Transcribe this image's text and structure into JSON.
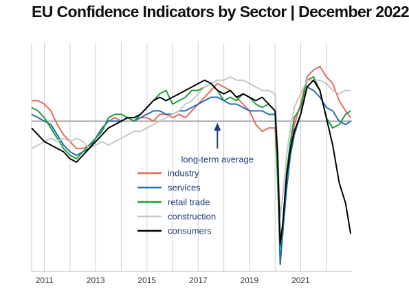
{
  "chart_data": {
    "type": "line",
    "title": "EU Confidence Indicators by Sector | December 2022",
    "xlabel": "",
    "ylabel": "",
    "xlim": [
      2010.5,
      2023.0
    ],
    "ylim": [
      -4.4,
      2.3
    ],
    "x_ticks": [
      "2011",
      "2013",
      "2015",
      "2017",
      "2019",
      "2021"
    ],
    "x_tick_values": [
      2011,
      2013,
      2015,
      2017,
      2019,
      2021
    ],
    "vertical_gridlines": [
      2010.5,
      2011,
      2012,
      2013,
      2014,
      2015,
      2016,
      2017,
      2018,
      2019,
      2020,
      2021,
      2022
    ],
    "reference_line": {
      "y": 0,
      "label": "long-term average",
      "color": "#999999"
    },
    "annotation": {
      "text": "long-term average",
      "arrow_x": 2017.75,
      "color": "#1f3a7a"
    },
    "legend_position": "center",
    "series": [
      {
        "name": "industry",
        "color": "#e8685a",
        "x": [
          2010.5,
          2010.75,
          2011.0,
          2011.25,
          2011.5,
          2011.75,
          2012.0,
          2012.25,
          2012.5,
          2012.75,
          2013.0,
          2013.25,
          2013.5,
          2013.75,
          2014.0,
          2014.25,
          2014.5,
          2014.75,
          2015.0,
          2015.25,
          2015.5,
          2015.75,
          2016.0,
          2016.25,
          2016.5,
          2016.75,
          2017.0,
          2017.25,
          2017.5,
          2017.75,
          2018.0,
          2018.25,
          2018.5,
          2018.75,
          2019.0,
          2019.25,
          2019.5,
          2019.75,
          2020.0,
          2020.1,
          2020.2,
          2020.3,
          2020.45,
          2020.6,
          2020.75,
          2021.0,
          2021.25,
          2021.5,
          2021.75,
          2022.0,
          2022.25,
          2022.5,
          2022.75,
          2022.95
        ],
        "y": [
          0.6,
          0.6,
          0.5,
          0.3,
          -0.1,
          -0.4,
          -0.6,
          -0.8,
          -0.8,
          -0.7,
          -0.5,
          -0.2,
          0.0,
          0.1,
          0.0,
          0.1,
          0.0,
          0.1,
          0.1,
          0.0,
          0.2,
          0.2,
          0.1,
          0.2,
          0.1,
          0.3,
          0.5,
          0.7,
          0.9,
          1.1,
          1.0,
          0.9,
          0.7,
          0.5,
          0.3,
          -0.1,
          -0.3,
          -0.2,
          -0.2,
          -1.6,
          -3.5,
          -3.2,
          -1.8,
          -0.8,
          -0.1,
          0.5,
          1.3,
          1.5,
          1.6,
          1.3,
          1.1,
          0.6,
          0.3,
          0.1
        ]
      },
      {
        "name": "services",
        "color": "#1f6eb5",
        "x": [
          2010.5,
          2010.75,
          2011.0,
          2011.25,
          2011.5,
          2011.75,
          2012.0,
          2012.25,
          2012.5,
          2012.75,
          2013.0,
          2013.25,
          2013.5,
          2013.75,
          2014.0,
          2014.25,
          2014.5,
          2014.75,
          2015.0,
          2015.25,
          2015.5,
          2015.75,
          2016.0,
          2016.25,
          2016.5,
          2016.75,
          2017.0,
          2017.25,
          2017.5,
          2017.75,
          2018.0,
          2018.25,
          2018.5,
          2018.75,
          2019.0,
          2019.25,
          2019.5,
          2019.75,
          2020.0,
          2020.1,
          2020.2,
          2020.3,
          2020.45,
          2020.6,
          2020.75,
          2021.0,
          2021.25,
          2021.5,
          2021.75,
          2022.0,
          2022.25,
          2022.5,
          2022.75,
          2022.95
        ],
        "y": [
          0.2,
          0.1,
          0.0,
          -0.1,
          -0.4,
          -0.7,
          -0.9,
          -1.0,
          -0.9,
          -0.8,
          -0.5,
          -0.2,
          0.0,
          0.0,
          0.0,
          0.1,
          0.0,
          0.1,
          0.2,
          0.3,
          0.3,
          0.2,
          0.2,
          0.3,
          0.3,
          0.4,
          0.5,
          0.6,
          0.7,
          0.7,
          0.6,
          0.5,
          0.5,
          0.4,
          0.3,
          0.3,
          0.3,
          0.2,
          0.2,
          -1.5,
          -4.2,
          -3.3,
          -2.0,
          -1.0,
          -0.4,
          0.2,
          1.0,
          0.9,
          0.7,
          0.4,
          0.3,
          0.0,
          -0.1,
          0.0
        ]
      },
      {
        "name": "retail trade",
        "color": "#1f9a3a",
        "x": [
          2010.5,
          2010.75,
          2011.0,
          2011.25,
          2011.5,
          2011.75,
          2012.0,
          2012.25,
          2012.5,
          2012.75,
          2013.0,
          2013.25,
          2013.5,
          2013.75,
          2014.0,
          2014.25,
          2014.5,
          2014.75,
          2015.0,
          2015.25,
          2015.5,
          2015.75,
          2016.0,
          2016.25,
          2016.5,
          2016.75,
          2017.0,
          2017.25,
          2017.5,
          2017.75,
          2018.0,
          2018.25,
          2018.5,
          2018.75,
          2019.0,
          2019.25,
          2019.5,
          2019.75,
          2020.0,
          2020.1,
          2020.2,
          2020.3,
          2020.45,
          2020.6,
          2020.75,
          2021.0,
          2021.25,
          2021.5,
          2021.75,
          2022.0,
          2022.25,
          2022.5,
          2022.75,
          2022.95
        ],
        "y": [
          0.4,
          0.3,
          0.1,
          -0.2,
          -0.5,
          -0.8,
          -1.0,
          -1.1,
          -0.9,
          -0.7,
          -0.5,
          -0.3,
          0.1,
          0.2,
          0.2,
          0.1,
          0.0,
          0.2,
          0.4,
          0.6,
          0.8,
          0.9,
          0.5,
          0.6,
          0.7,
          0.9,
          0.9,
          1.0,
          1.1,
          0.9,
          0.6,
          0.7,
          0.6,
          0.8,
          0.7,
          0.5,
          0.4,
          0.5,
          0.3,
          -1.8,
          -3.7,
          -3.1,
          -1.5,
          -0.6,
          0.1,
          0.4,
          1.2,
          1.3,
          0.9,
          0.1,
          -0.2,
          -0.1,
          0.2,
          0.3
        ]
      },
      {
        "name": "construction",
        "color": "#c6c6c6",
        "x": [
          2010.5,
          2010.75,
          2011.0,
          2011.25,
          2011.5,
          2011.75,
          2012.0,
          2012.25,
          2012.5,
          2012.75,
          2013.0,
          2013.25,
          2013.5,
          2013.75,
          2014.0,
          2014.25,
          2014.5,
          2014.75,
          2015.0,
          2015.25,
          2015.5,
          2015.75,
          2016.0,
          2016.25,
          2016.5,
          2016.75,
          2017.0,
          2017.25,
          2017.5,
          2017.75,
          2018.0,
          2018.25,
          2018.5,
          2018.75,
          2019.0,
          2019.25,
          2019.5,
          2019.75,
          2020.0,
          2020.1,
          2020.2,
          2020.3,
          2020.45,
          2020.6,
          2020.75,
          2021.0,
          2021.25,
          2021.5,
          2021.75,
          2022.0,
          2022.25,
          2022.5,
          2022.75,
          2022.95
        ],
        "y": [
          -0.8,
          -0.7,
          -0.6,
          -0.5,
          -0.6,
          -0.5,
          -0.6,
          -0.5,
          -0.6,
          -0.8,
          -0.7,
          -0.6,
          -0.7,
          -0.6,
          -0.5,
          -0.4,
          -0.3,
          -0.3,
          -0.2,
          -0.1,
          0.0,
          0.1,
          0.2,
          0.3,
          0.5,
          0.6,
          0.8,
          1.0,
          1.1,
          1.2,
          1.2,
          1.3,
          1.2,
          1.2,
          1.1,
          1.0,
          0.9,
          0.9,
          0.8,
          -0.8,
          -2.8,
          -2.2,
          -1.0,
          -0.2,
          0.4,
          0.8,
          1.2,
          1.2,
          1.2,
          1.1,
          0.9,
          0.8,
          0.9,
          0.9
        ]
      },
      {
        "name": "consumers",
        "color": "#000000",
        "x": [
          2010.5,
          2010.75,
          2011.0,
          2011.25,
          2011.5,
          2011.75,
          2012.0,
          2012.25,
          2012.5,
          2012.75,
          2013.0,
          2013.25,
          2013.5,
          2013.75,
          2014.0,
          2014.25,
          2014.5,
          2014.75,
          2015.0,
          2015.25,
          2015.5,
          2015.75,
          2016.0,
          2016.25,
          2016.5,
          2016.75,
          2017.0,
          2017.25,
          2017.5,
          2017.75,
          2018.0,
          2018.25,
          2018.5,
          2018.75,
          2019.0,
          2019.25,
          2019.5,
          2019.75,
          2020.0,
          2020.1,
          2020.2,
          2020.3,
          2020.45,
          2020.6,
          2020.75,
          2021.0,
          2021.25,
          2021.5,
          2021.75,
          2022.0,
          2022.25,
          2022.5,
          2022.75,
          2022.95
        ],
        "y": [
          -0.2,
          -0.4,
          -0.6,
          -0.7,
          -0.8,
          -0.9,
          -1.1,
          -1.2,
          -1.0,
          -0.8,
          -0.6,
          -0.4,
          -0.2,
          -0.1,
          0.0,
          0.1,
          0.1,
          0.2,
          0.4,
          0.6,
          0.7,
          0.6,
          0.7,
          0.8,
          0.9,
          1.0,
          1.1,
          1.2,
          1.1,
          0.9,
          0.8,
          0.9,
          0.7,
          0.8,
          0.7,
          0.6,
          0.7,
          0.5,
          0.3,
          -1.0,
          -3.6,
          -3.0,
          -1.6,
          -0.8,
          -0.3,
          0.2,
          1.0,
          1.2,
          0.9,
          0.1,
          -0.7,
          -1.8,
          -2.4,
          -3.3
        ]
      }
    ]
  }
}
